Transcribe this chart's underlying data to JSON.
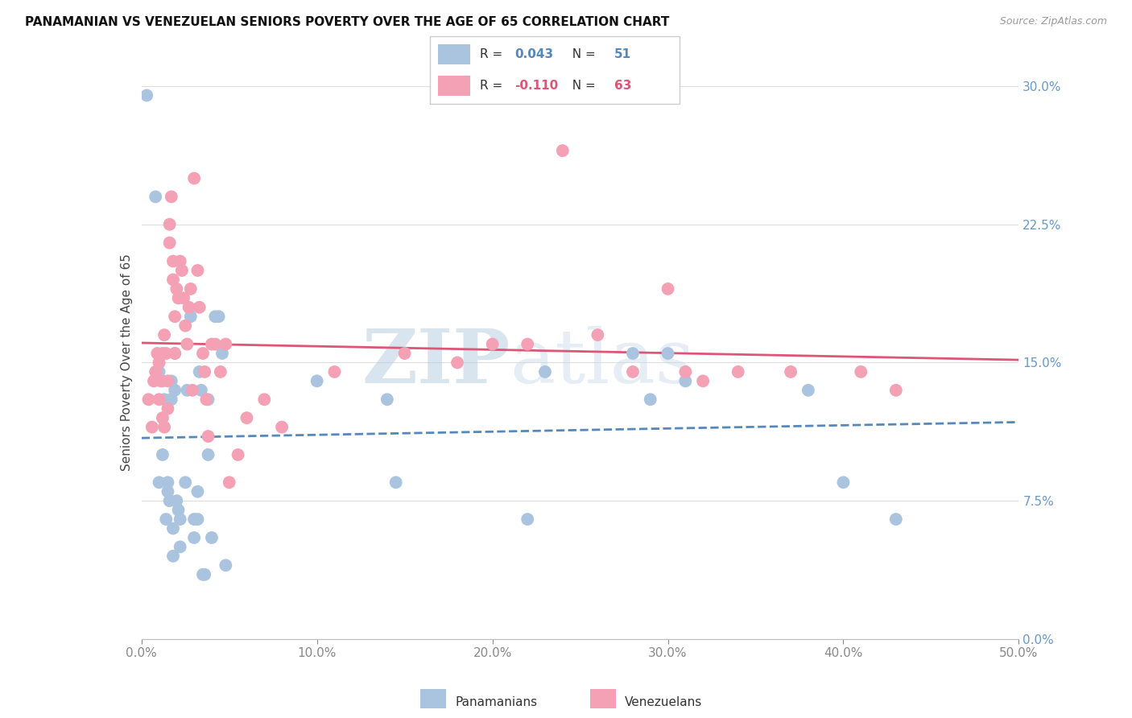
{
  "title": "PANAMANIAN VS VENEZUELAN SENIORS POVERTY OVER THE AGE OF 65 CORRELATION CHART",
  "source": "Source: ZipAtlas.com",
  "ylabel": "Seniors Poverty Over the Age of 65",
  "xlim": [
    0.0,
    0.5
  ],
  "ylim": [
    0.0,
    0.3
  ],
  "xlabel_ticks": [
    0.0,
    0.1,
    0.2,
    0.3,
    0.4,
    0.5
  ],
  "xlabel_labels": [
    "0.0%",
    "10.0%",
    "20.0%",
    "30.0%",
    "40.0%",
    "50.0%"
  ],
  "ylabel_ticks": [
    0.0,
    0.075,
    0.15,
    0.225,
    0.3
  ],
  "ylabel_labels": [
    "0.0%",
    "7.5%",
    "15.0%",
    "22.5%",
    "30.0%"
  ],
  "panamanian_color": "#aac4e0",
  "venezuelan_color": "#f4a0b5",
  "panamanian_R": 0.043,
  "panamanian_N": 51,
  "venezuelan_R": -0.11,
  "venezuelan_N": 63,
  "line_pan_color": "#5588bb",
  "line_ven_color": "#dd5577",
  "watermark_zip": "ZIP",
  "watermark_atlas": "atlas",
  "pan_x": [
    0.003,
    0.008,
    0.01,
    0.01,
    0.012,
    0.012,
    0.013,
    0.014,
    0.015,
    0.015,
    0.016,
    0.017,
    0.017,
    0.018,
    0.018,
    0.019,
    0.019,
    0.02,
    0.021,
    0.022,
    0.022,
    0.025,
    0.026,
    0.028,
    0.03,
    0.03,
    0.032,
    0.032,
    0.033,
    0.034,
    0.035,
    0.036,
    0.038,
    0.038,
    0.04,
    0.042,
    0.044,
    0.046,
    0.048,
    0.1,
    0.14,
    0.145,
    0.22,
    0.23,
    0.28,
    0.29,
    0.3,
    0.31,
    0.38,
    0.4,
    0.43
  ],
  "pan_y": [
    0.295,
    0.24,
    0.145,
    0.085,
    0.14,
    0.1,
    0.13,
    0.065,
    0.085,
    0.08,
    0.075,
    0.13,
    0.14,
    0.06,
    0.045,
    0.155,
    0.135,
    0.075,
    0.07,
    0.065,
    0.05,
    0.085,
    0.135,
    0.175,
    0.065,
    0.055,
    0.08,
    0.065,
    0.145,
    0.135,
    0.035,
    0.035,
    0.1,
    0.13,
    0.055,
    0.175,
    0.175,
    0.155,
    0.04,
    0.14,
    0.13,
    0.085,
    0.065,
    0.145,
    0.155,
    0.13,
    0.155,
    0.14,
    0.135,
    0.085,
    0.065
  ],
  "ven_x": [
    0.004,
    0.006,
    0.007,
    0.008,
    0.009,
    0.01,
    0.01,
    0.011,
    0.012,
    0.012,
    0.013,
    0.013,
    0.014,
    0.015,
    0.015,
    0.016,
    0.016,
    0.017,
    0.018,
    0.018,
    0.019,
    0.019,
    0.02,
    0.021,
    0.022,
    0.023,
    0.024,
    0.025,
    0.026,
    0.027,
    0.028,
    0.029,
    0.03,
    0.032,
    0.033,
    0.035,
    0.036,
    0.037,
    0.038,
    0.04,
    0.042,
    0.045,
    0.048,
    0.05,
    0.055,
    0.06,
    0.07,
    0.08,
    0.11,
    0.15,
    0.18,
    0.2,
    0.22,
    0.24,
    0.26,
    0.28,
    0.3,
    0.31,
    0.32,
    0.34,
    0.37,
    0.41,
    0.43
  ],
  "ven_y": [
    0.13,
    0.115,
    0.14,
    0.145,
    0.155,
    0.15,
    0.13,
    0.14,
    0.155,
    0.12,
    0.165,
    0.115,
    0.155,
    0.14,
    0.125,
    0.215,
    0.225,
    0.24,
    0.195,
    0.205,
    0.155,
    0.175,
    0.19,
    0.185,
    0.205,
    0.2,
    0.185,
    0.17,
    0.16,
    0.18,
    0.19,
    0.135,
    0.25,
    0.2,
    0.18,
    0.155,
    0.145,
    0.13,
    0.11,
    0.16,
    0.16,
    0.145,
    0.16,
    0.085,
    0.1,
    0.12,
    0.13,
    0.115,
    0.145,
    0.155,
    0.15,
    0.16,
    0.16,
    0.265,
    0.165,
    0.145,
    0.19,
    0.145,
    0.14,
    0.145,
    0.145,
    0.145,
    0.135
  ]
}
